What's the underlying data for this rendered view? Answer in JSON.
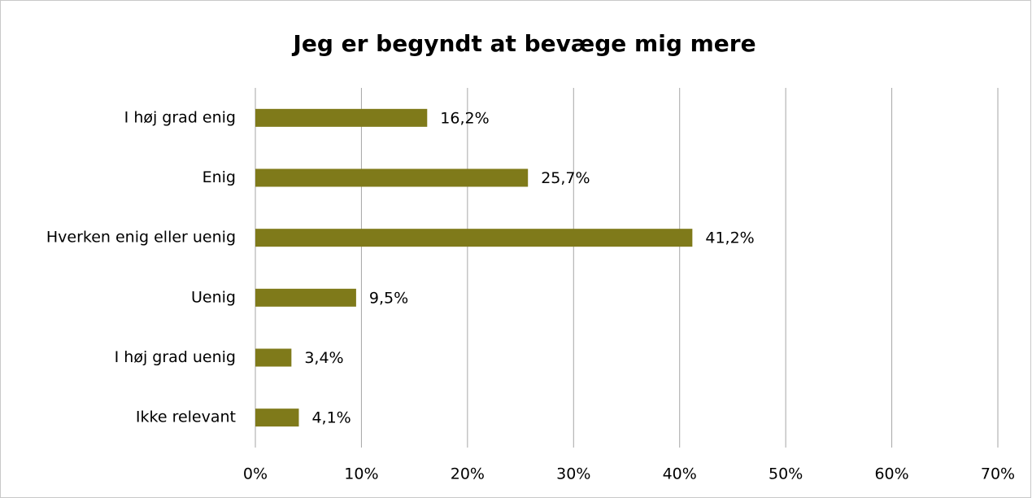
{
  "chart_data": {
    "type": "bar",
    "orientation": "horizontal",
    "title": "Jeg er begyndt at bevæge mig mere",
    "categories": [
      "I høj grad enig",
      "Enig",
      "Hverken enig eller uenig",
      "Uenig",
      "I høj grad uenig",
      "Ikke relevant"
    ],
    "values": [
      16.2,
      25.7,
      41.2,
      9.5,
      3.4,
      4.1
    ],
    "value_labels": [
      "16,2%",
      "25,7%",
      "41,2%",
      "9,5%",
      "3,4%",
      "4,1%"
    ],
    "color": "#7f7a1a",
    "xlim": [
      0,
      70
    ],
    "xticks": [
      {
        "value": 0,
        "label": "0%"
      },
      {
        "value": 10,
        "label": "10%"
      },
      {
        "value": 20,
        "label": "20%"
      },
      {
        "value": 30,
        "label": "30%"
      },
      {
        "value": 40,
        "label": "40%"
      },
      {
        "value": 50,
        "label": "50%"
      },
      {
        "value": 60,
        "label": "60%"
      },
      {
        "value": 70,
        "label": "70%"
      }
    ],
    "grid": true
  }
}
